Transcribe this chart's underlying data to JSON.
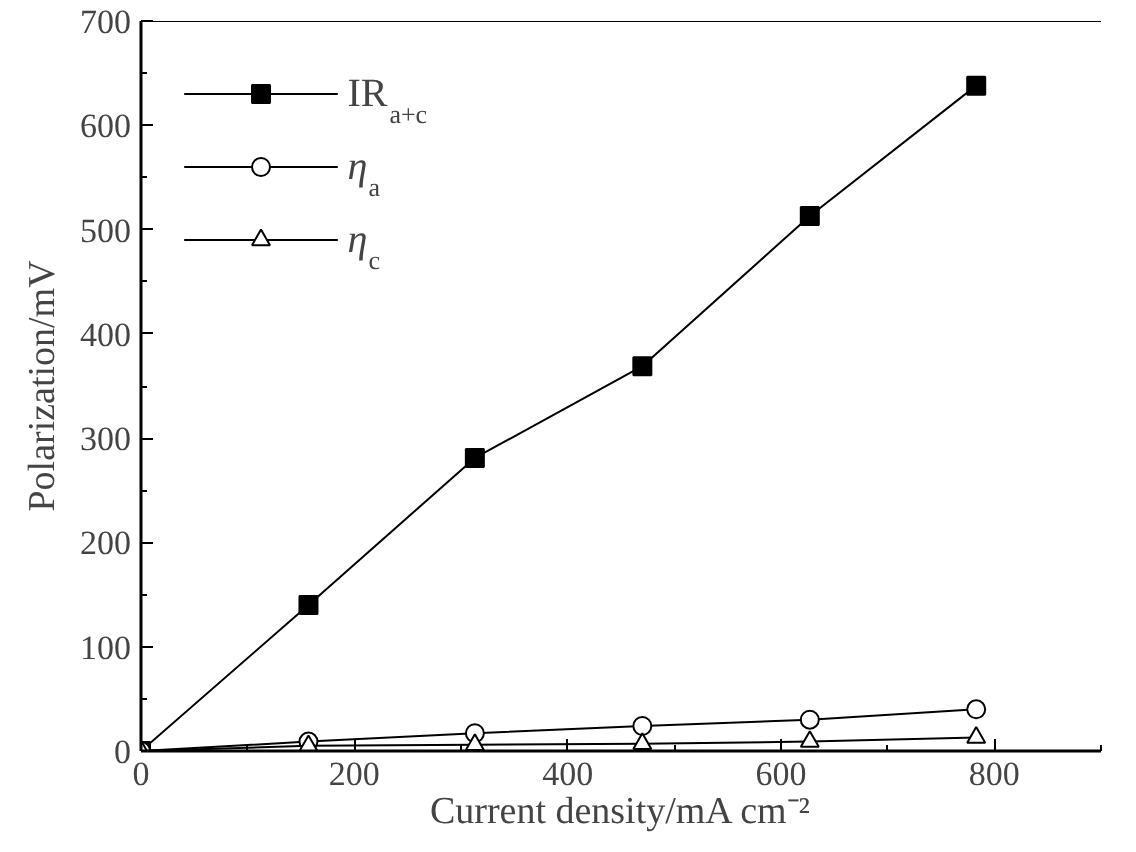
{
  "chart_data": {
    "type": "line",
    "xlabel": "Current density/mA cm⁻²",
    "ylabel": "Polarization/mV",
    "x": [
      0,
      157,
      313,
      470,
      627,
      783
    ],
    "series": [
      {
        "name": "IR$_{a+c}$",
        "color": "#000000",
        "marker": "square",
        "values": [
          0,
          140,
          281,
          369,
          513,
          638
        ]
      },
      {
        "name": "η$_{a}$",
        "color": "#000000",
        "marker": "circle",
        "values": [
          0,
          9,
          17,
          24,
          30,
          40
        ]
      },
      {
        "name": "η$_{c}$",
        "color": "#000000",
        "marker": "triangle",
        "values": [
          0,
          5,
          6,
          7,
          9,
          13
        ]
      }
    ],
    "xlim": [
      0,
      900
    ],
    "ylim": [
      0,
      700
    ],
    "xticks": [
      0,
      200,
      400,
      600,
      800
    ],
    "yticks": [
      0,
      100,
      200,
      300,
      400,
      500,
      600,
      700
    ],
    "grid": false,
    "legend": "top left",
    "line_style": "solid"
  }
}
